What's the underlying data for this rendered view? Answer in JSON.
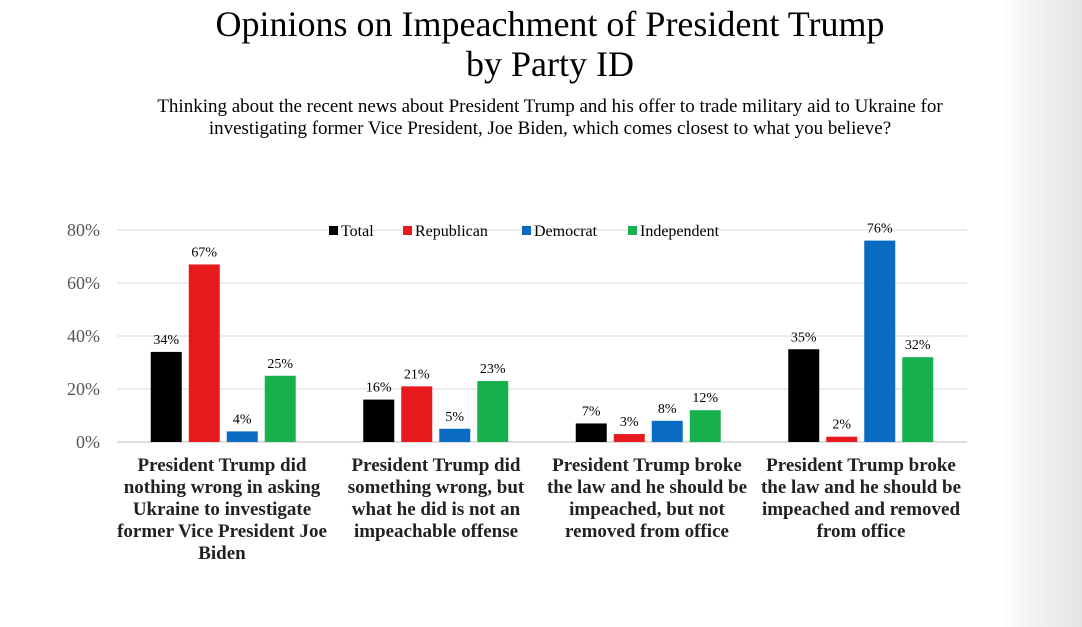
{
  "chart_data": {
    "type": "bar",
    "title_line1": "Opinions on Impeachment of President Trump",
    "title_line2": "by Party ID",
    "subtitle_line1": "Thinking about the recent news about President Trump and his offer to trade military aid to Ukraine for",
    "subtitle_line2": "investigating former Vice President, Joe Biden, which comes closest to what you believe?",
    "categories": [
      "President Trump did nothing wrong in asking Ukraine to investigate former Vice President Joe Biden",
      "President Trump did something wrong, but what he did is not an impeachable offense",
      "President Trump broke the law and he should be impeached, but not removed from office",
      "President Trump broke the law and he should be impeached and removed from office"
    ],
    "series": [
      {
        "name": "Total",
        "color": "#000000",
        "values": [
          34,
          16,
          7,
          35
        ]
      },
      {
        "name": "Republican",
        "color": "#e8191c",
        "values": [
          67,
          21,
          3,
          2
        ]
      },
      {
        "name": "Democrat",
        "color": "#0a6bc2",
        "values": [
          4,
          5,
          8,
          76
        ]
      },
      {
        "name": "Independent",
        "color": "#16b04c",
        "values": [
          25,
          23,
          12,
          32
        ]
      }
    ],
    "value_suffix": "%",
    "ylim": [
      0,
      80
    ],
    "yticks": [
      "0%",
      "20%",
      "40%",
      "60%",
      "80%"
    ],
    "ytick_values": [
      0,
      20,
      40,
      60,
      80
    ],
    "grid": true,
    "legend_position": "top"
  }
}
